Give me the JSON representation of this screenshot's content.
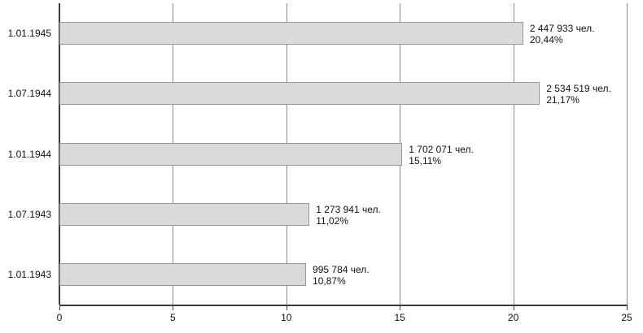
{
  "chart_data": {
    "type": "bar",
    "orientation": "horizontal",
    "title": "",
    "xlabel": "",
    "ylabel": "",
    "categories": [
      "1.01.1945",
      "1.07.1944",
      "1.01.1944",
      "1.07.1943",
      "1.01.1943"
    ],
    "values": [
      20.44,
      21.17,
      15.11,
      11.02,
      10.87
    ],
    "bar_labels": [
      {
        "line1": "2 447 933 чел.",
        "line2": "20,44%"
      },
      {
        "line1": "2 534 519 чел.",
        "line2": "21,17%"
      },
      {
        "line1": "1 702 071 чел.",
        "line2": "15,11%"
      },
      {
        "line1": "1 273 941 чел.",
        "line2": "11,02%"
      },
      {
        "line1": "995 784 чел.",
        "line2": "10,87%"
      }
    ],
    "xlim": [
      0,
      25
    ],
    "x_ticks": [
      "0",
      "5",
      "10",
      "15",
      "20",
      "25"
    ],
    "grid": "vertical-only",
    "legend": "none"
  },
  "colors": {
    "background": "#ffffff",
    "bar_fill": "#dadada",
    "bar_border": "#979797",
    "gridline": "#8c8c8c",
    "axis": "#3a3a3a",
    "text": "#111111"
  }
}
